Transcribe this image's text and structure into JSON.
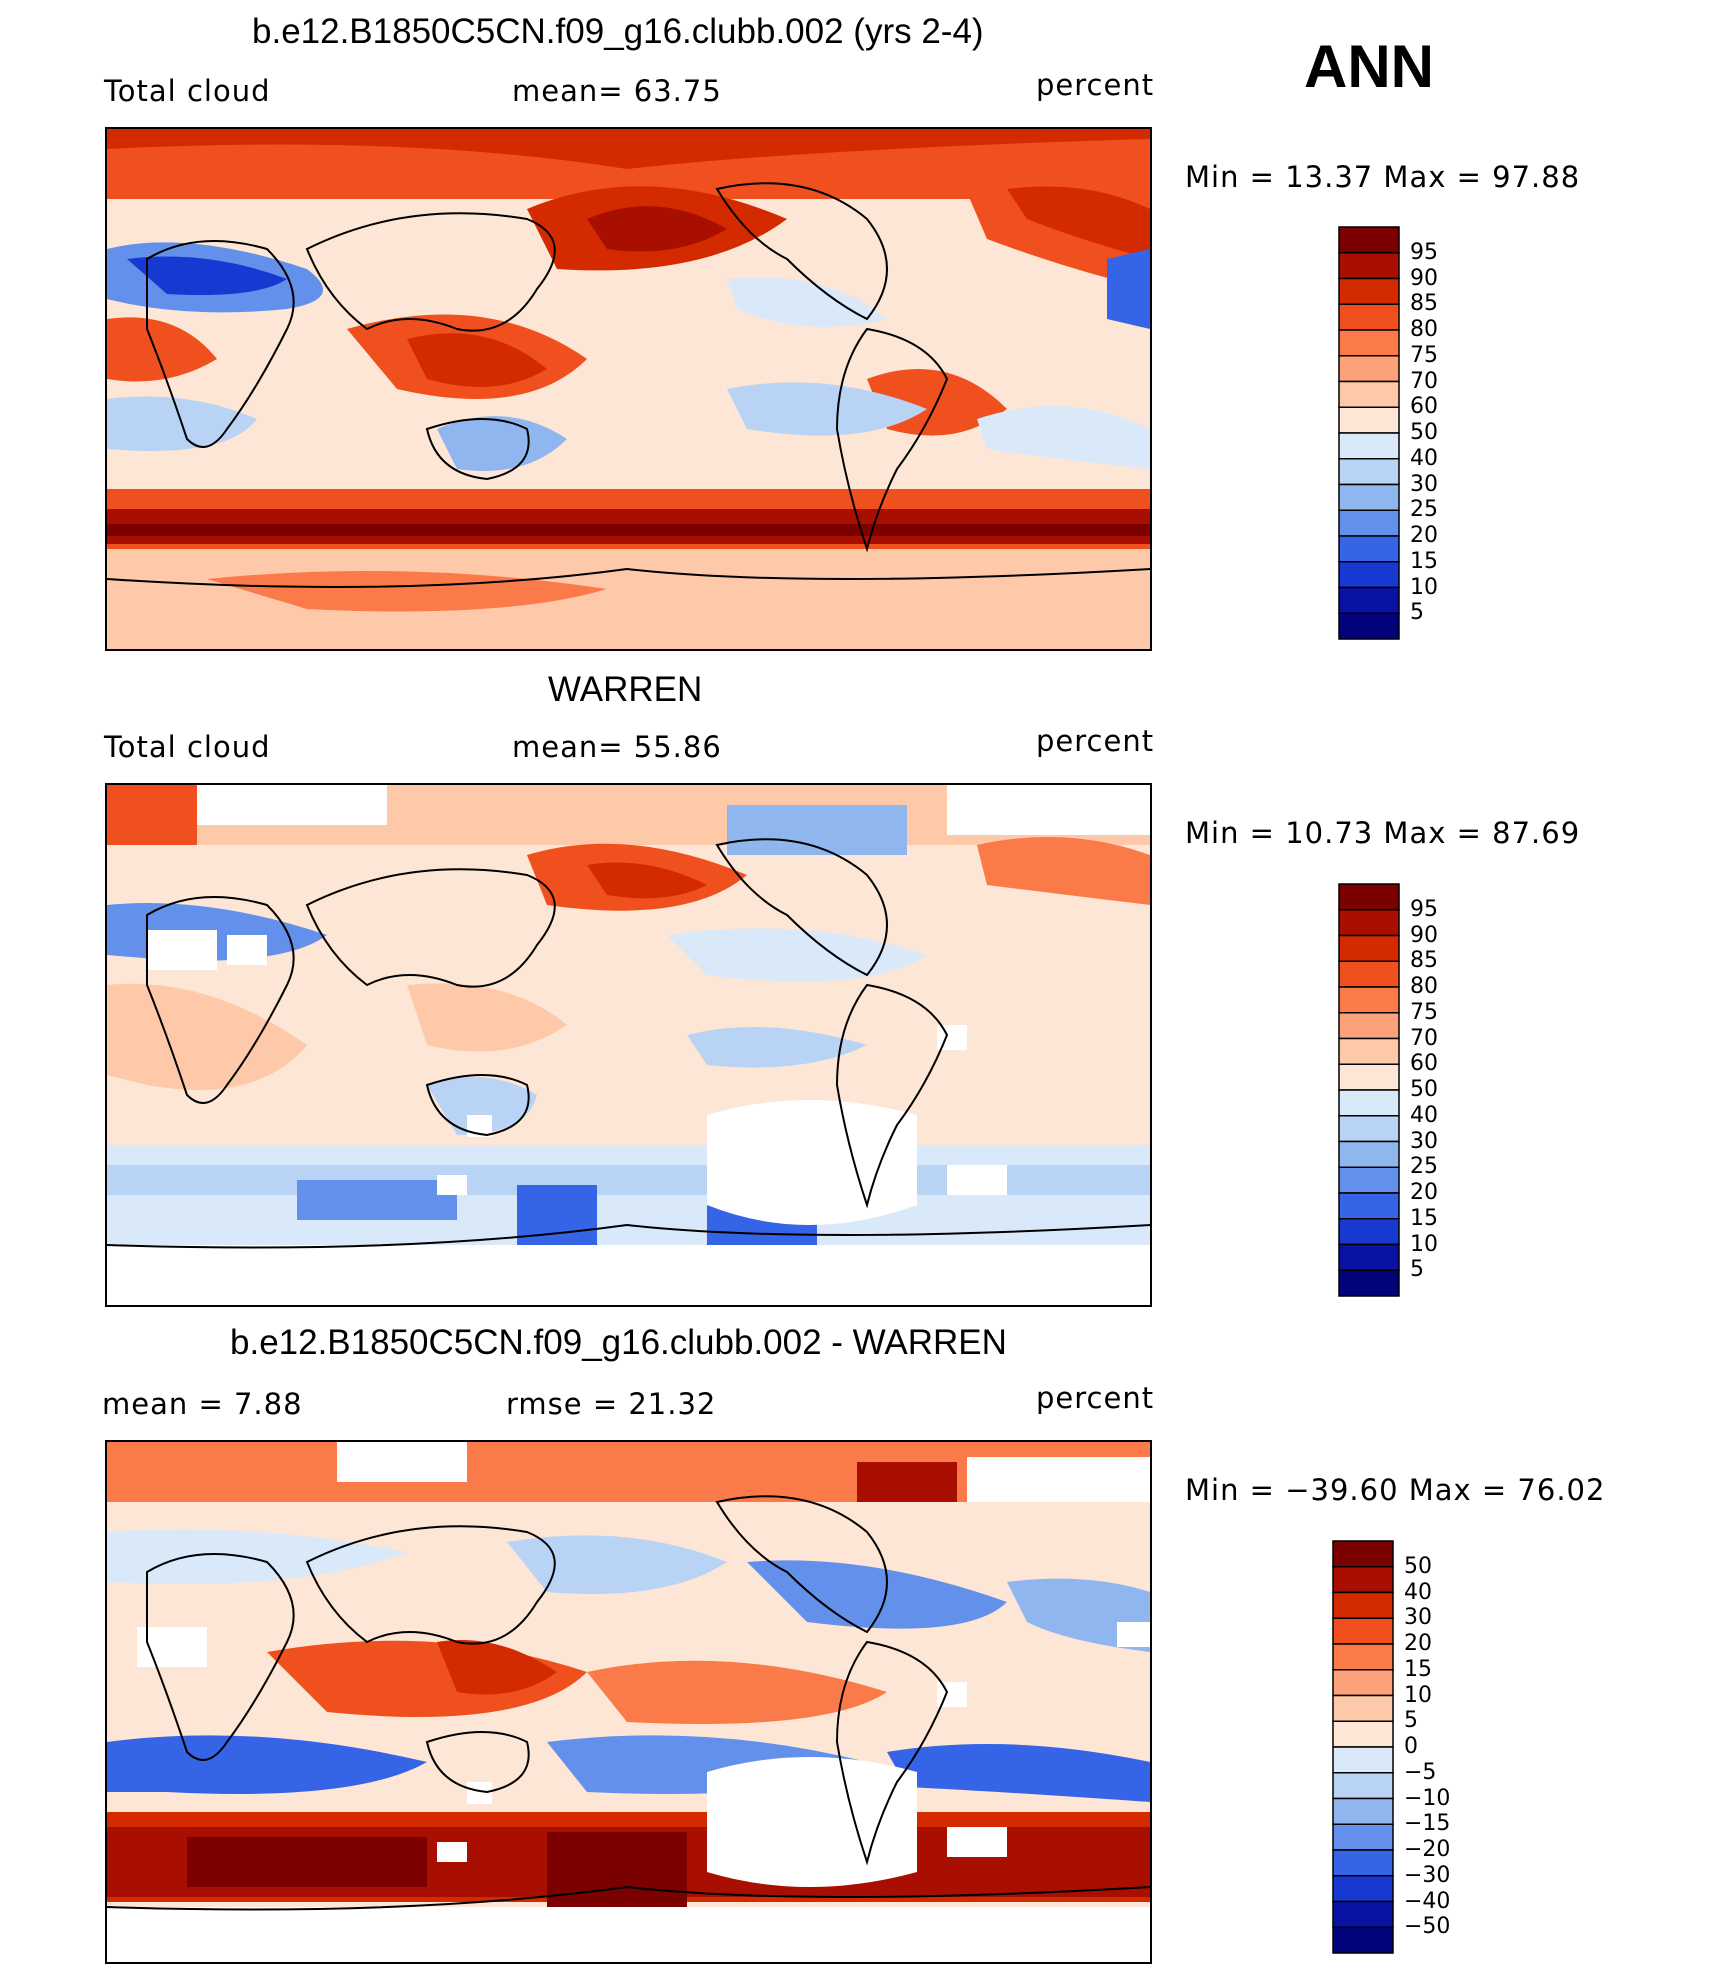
{
  "season": "ANN",
  "panels": [
    {
      "id": "model",
      "title": "b.e12.B1850C5CN.f09_g16.clubb.002 (yrs 2-4)",
      "left_label": "Total cloud",
      "mid_label": "mean=   63.75",
      "right_label": "percent",
      "stats": "Min  =    13.37  Max  =    97.88"
    },
    {
      "id": "obs",
      "title": "WARREN",
      "left_label": "Total cloud",
      "mid_label": "mean=   55.86",
      "right_label": "percent",
      "stats": "Min  =    10.73  Max  =    87.69"
    },
    {
      "id": "diff",
      "title": "b.e12.B1850C5CN.f09_g16.clubb.002 - WARREN",
      "left_label": "mean  =     7.88",
      "mid_label": "rmse  =    21.32",
      "right_label": "percent",
      "stats": "Min  = −39.60  Max  =    76.02"
    }
  ],
  "colorbars": {
    "field": {
      "labels": [
        "95",
        "90",
        "85",
        "80",
        "75",
        "70",
        "60",
        "50",
        "40",
        "30",
        "25",
        "20",
        "15",
        "10",
        "5"
      ],
      "colors": [
        "#7b0000",
        "#a80f00",
        "#d42a00",
        "#f0501e",
        "#fb7a4a",
        "#fca27a",
        "#fdc9a8",
        "#fde6d6",
        "#d9e9f9",
        "#b9d3f4",
        "#8fb6ef",
        "#6390ea",
        "#3564e6",
        "#1838d2",
        "#0a12a4",
        "#02037a"
      ]
    },
    "diff": {
      "labels": [
        "50",
        "40",
        "30",
        "20",
        "15",
        "10",
        "5",
        "0",
        "−5",
        "−10",
        "−15",
        "−20",
        "−30",
        "−40",
        "−50"
      ],
      "colors": [
        "#7b0000",
        "#a80f00",
        "#d42a00",
        "#f0501e",
        "#fb7a4a",
        "#fca27a",
        "#fdc9a8",
        "#fde6d6",
        "#d9e9f9",
        "#b9d3f4",
        "#8fb6ef",
        "#6390ea",
        "#3564e6",
        "#1838d2",
        "#0a12a4",
        "#02037a"
      ]
    }
  }
}
